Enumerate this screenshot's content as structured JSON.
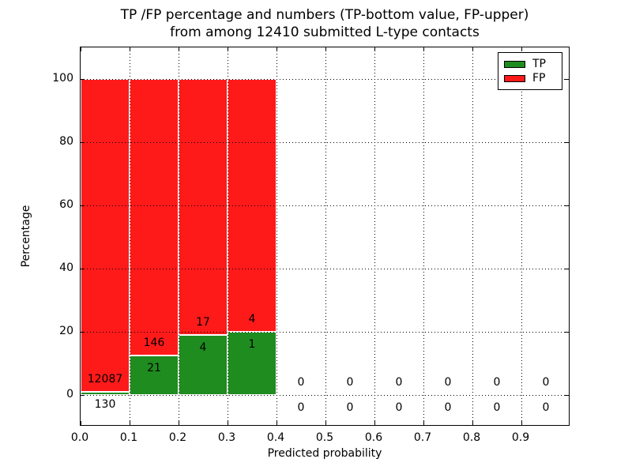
{
  "chart_data": {
    "type": "bar",
    "stacked": true,
    "title_lines": [
      "TP /FP percentage and numbers (TP-bottom value, FP-upper)",
      "from among 12410 submitted L-type contacts"
    ],
    "xlabel": "Predicted probability",
    "ylabel": "Percentage",
    "xlim": [
      0.0,
      1.0
    ],
    "ylim": [
      -10,
      110
    ],
    "grid": "dotted",
    "legend_position": "upper right",
    "xticks": [
      "0.0",
      "0.1",
      "0.2",
      "0.3",
      "0.4",
      "0.5",
      "0.6",
      "0.7",
      "0.8",
      "0.9"
    ],
    "yticks": [
      "0",
      "20",
      "40",
      "60",
      "80",
      "100"
    ],
    "ytick_values": [
      0,
      20,
      40,
      60,
      80,
      100
    ],
    "bin_width": 0.1,
    "bin_starts": [
      0.0,
      0.1,
      0.2,
      0.3,
      0.4,
      0.5,
      0.6,
      0.7,
      0.8,
      0.9
    ],
    "categories": [
      "0.0-0.1",
      "0.1-0.2",
      "0.2-0.3",
      "0.3-0.4",
      "0.4-0.5",
      "0.5-0.6",
      "0.6-0.7",
      "0.7-0.8",
      "0.8-0.9",
      "0.9-1.0"
    ],
    "series": [
      {
        "name": "TP",
        "color": "#1f8c1f",
        "values": [
          130,
          21,
          4,
          1,
          0,
          0,
          0,
          0,
          0,
          0
        ]
      },
      {
        "name": "FP",
        "color": "#ff1a1a",
        "values": [
          12087,
          146,
          17,
          4,
          0,
          0,
          0,
          0,
          0,
          0
        ]
      }
    ],
    "bar_value_note": "bars show TP/FP as stacked percentage of each bin; numeric labels show raw counts (TP below, FP above)"
  },
  "legend": {
    "items": [
      {
        "label": "TP",
        "color": "#1f8c1f"
      },
      {
        "label": "FP",
        "color": "#ff1a1a"
      }
    ]
  }
}
